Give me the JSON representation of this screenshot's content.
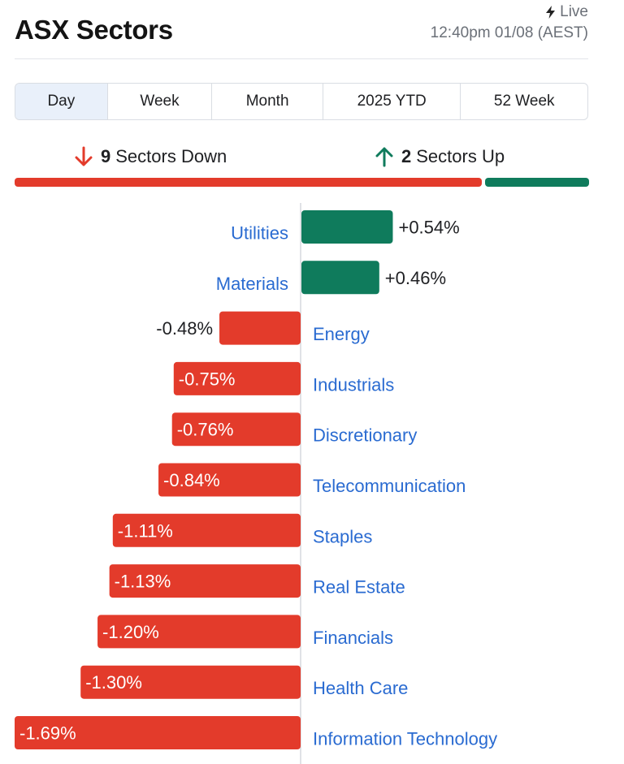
{
  "header": {
    "title": "ASX Sectors",
    "live_label": "Live",
    "timestamp": "12:40pm 01/08 (AEST)"
  },
  "tabs": [
    {
      "label": "Day",
      "active": true
    },
    {
      "label": "Week",
      "active": false
    },
    {
      "label": "Month",
      "active": false
    },
    {
      "label": "2025 YTD",
      "active": false
    },
    {
      "label": "52 Week",
      "active": false
    }
  ],
  "summary": {
    "down_count": "9",
    "down_label": "Sectors Down",
    "up_count": "2",
    "up_label": "Sectors Up"
  },
  "colors": {
    "positive": "#0f7b5c",
    "negative": "#e33b2b",
    "link": "#2a6bd1",
    "axis": "#d6d9de"
  },
  "icons": {
    "live": "lightning-bolt-icon",
    "down": "arrow-down-icon",
    "up": "arrow-up-icon"
  },
  "chart_data": {
    "type": "bar",
    "orientation": "horizontal",
    "categories": [
      "Utilities",
      "Materials",
      "Energy",
      "Industrials",
      "Discretionary",
      "Telecommunication",
      "Staples",
      "Real Estate",
      "Financials",
      "Health Care",
      "Information Technology"
    ],
    "values": [
      0.54,
      0.46,
      -0.48,
      -0.75,
      -0.76,
      -0.84,
      -1.11,
      -1.13,
      -1.2,
      -1.3,
      -1.69
    ],
    "value_labels": [
      "+0.54%",
      "+0.46%",
      "-0.48%",
      "-0.75%",
      "-0.76%",
      "-0.84%",
      "-1.11%",
      "-1.13%",
      "-1.20%",
      "-1.30%",
      "-1.69%"
    ],
    "unit": "%",
    "xlim": [
      -1.69,
      0.8
    ]
  }
}
